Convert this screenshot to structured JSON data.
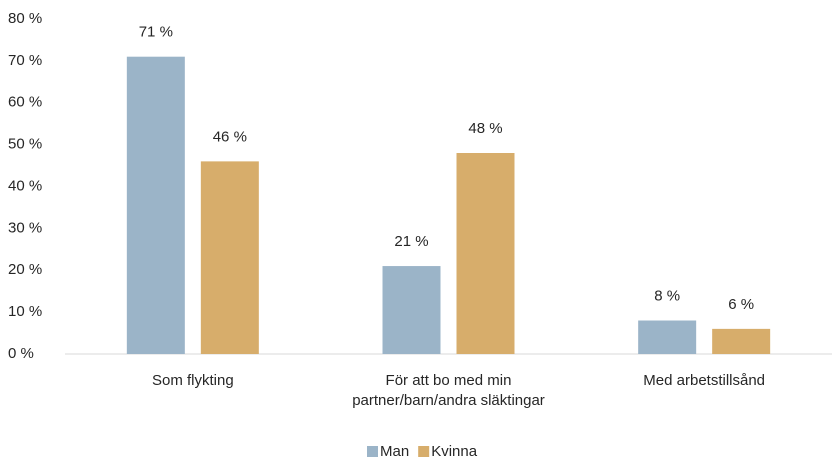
{
  "chart_data": {
    "type": "bar",
    "categories": [
      "Som flykting",
      "För att bo med min\npartner/barn/andra släktingar",
      "Med arbetstillsånd"
    ],
    "series": [
      {
        "name": "Man",
        "color": "#9bb4c8",
        "values": [
          71,
          21,
          8
        ],
        "value_labels": [
          "71 %",
          "21 %",
          "8 %"
        ]
      },
      {
        "name": "Kvinna",
        "color": "#d7ad6b",
        "values": [
          46,
          48,
          6
        ],
        "value_labels": [
          "46 %",
          "48 %",
          "6 %"
        ]
      }
    ],
    "ylim": [
      0,
      80
    ],
    "yticks": [
      {
        "value": 0,
        "label": "0 %"
      },
      {
        "value": 10,
        "label": "10 %"
      },
      {
        "value": 20,
        "label": "20 %"
      },
      {
        "value": 30,
        "label": "30 %"
      },
      {
        "value": 40,
        "label": "40 %"
      },
      {
        "value": 50,
        "label": "50 %"
      },
      {
        "value": 60,
        "label": "60 %"
      },
      {
        "value": 70,
        "label": "70 %"
      },
      {
        "value": 80,
        "label": "80 %"
      }
    ],
    "grid": false,
    "legend": "bottom"
  }
}
